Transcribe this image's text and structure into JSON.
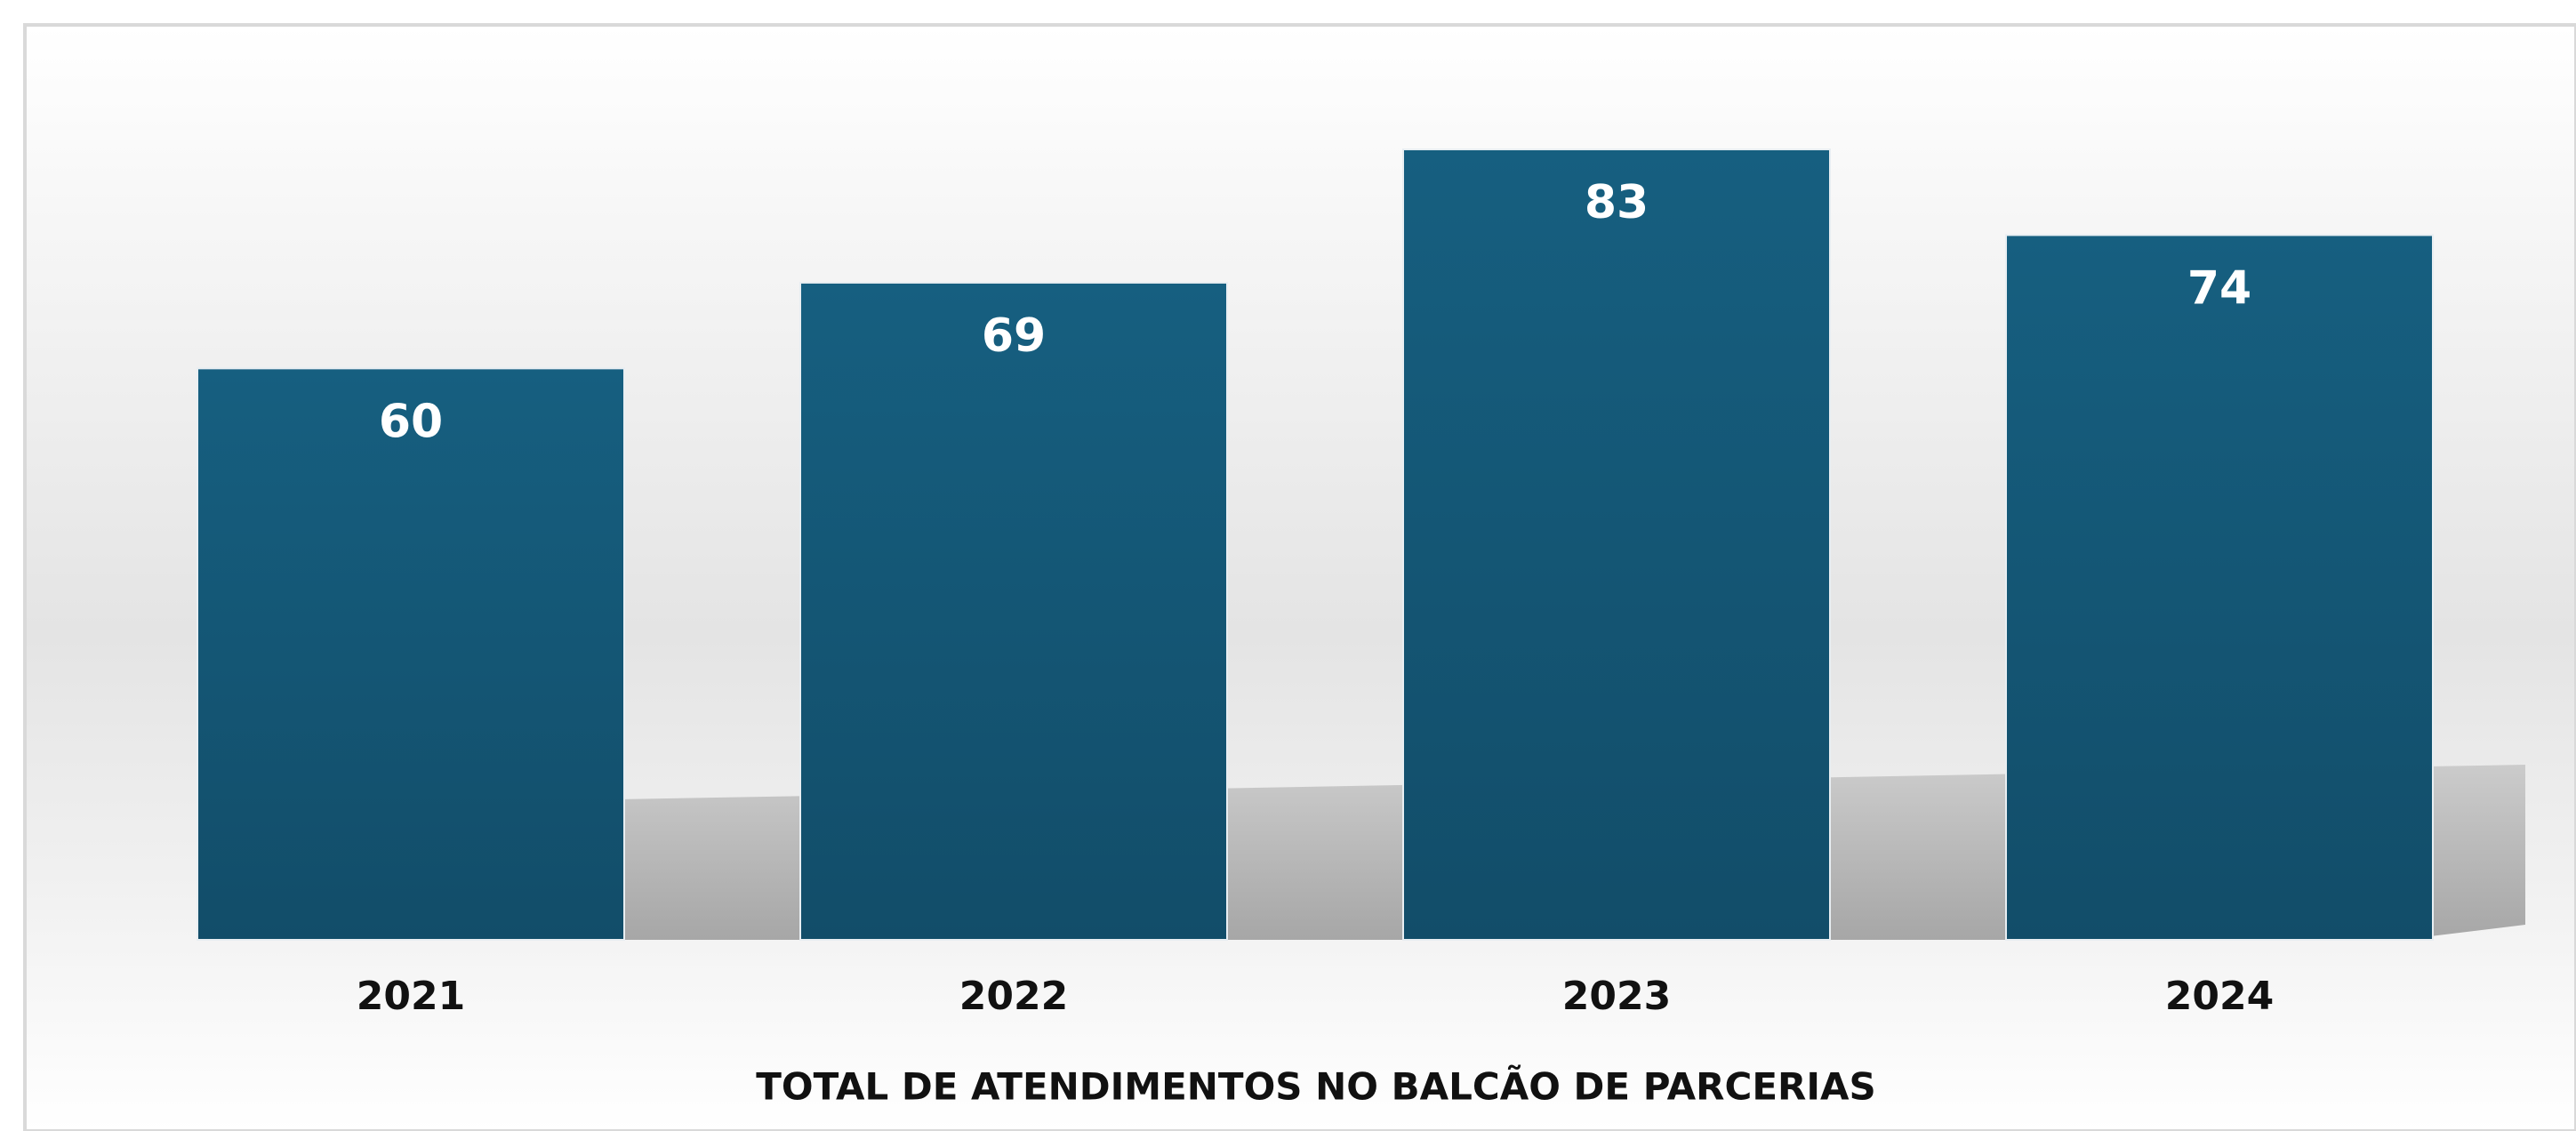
{
  "chart_data": {
    "type": "bar",
    "title": "TOTAL DE ATENDIMENTOS NO BALCÃO DE PARCERIAS",
    "categories": [
      "2021",
      "2022",
      "2023",
      "2024"
    ],
    "values": [
      60,
      69,
      83,
      74
    ],
    "color": "#155f80"
  }
}
